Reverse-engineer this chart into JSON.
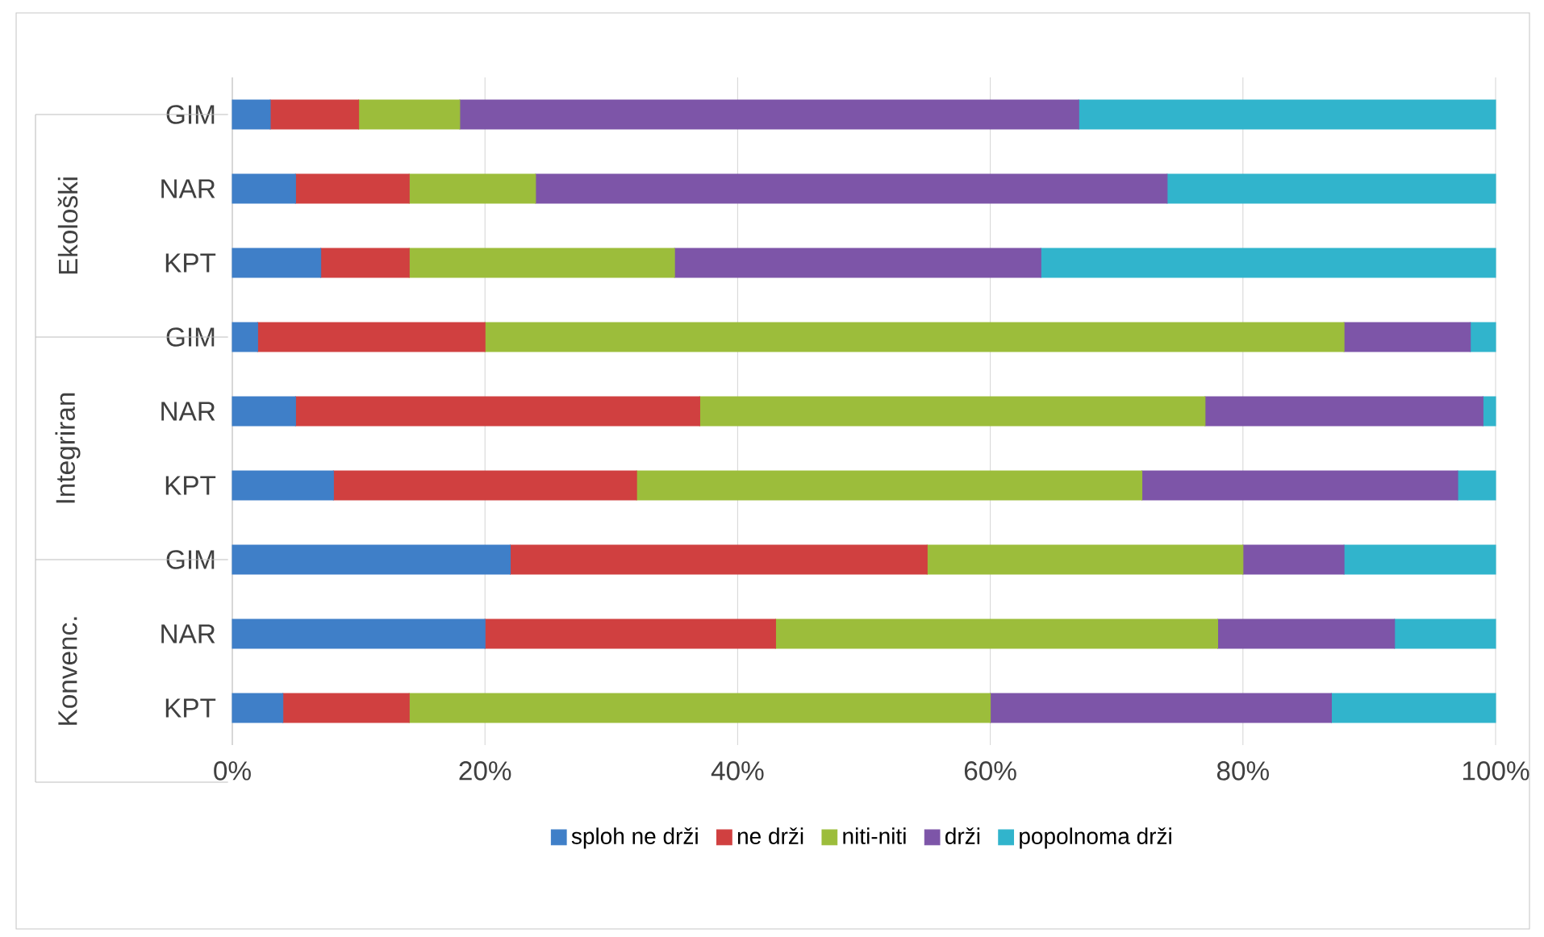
{
  "chart_data": {
    "type": "bar",
    "orientation": "horizontal",
    "stacked": true,
    "categories": [
      "GIM",
      "NAR",
      "KPT",
      "GIM",
      "NAR",
      "KPT",
      "GIM",
      "NAR",
      "KPT"
    ],
    "annotations": [
      "Ekološki",
      "Integriran",
      "Konvenc."
    ],
    "series": [
      {
        "name": "sploh ne drži",
        "color": "#3f7fc8",
        "values": [
          3,
          5,
          7,
          2,
          5,
          8,
          22,
          20,
          4
        ]
      },
      {
        "name": "ne drži",
        "color": "#d04040",
        "values": [
          7,
          9,
          7,
          18,
          32,
          24,
          33,
          23,
          10
        ]
      },
      {
        "name": "niti-niti",
        "color": "#9cbd3b",
        "values": [
          8,
          10,
          21,
          68,
          40,
          40,
          25,
          35,
          46
        ]
      },
      {
        "name": "drži",
        "color": "#7d55a8",
        "values": [
          49,
          50,
          29,
          10,
          22,
          25,
          8,
          14,
          27
        ]
      },
      {
        "name": "popolnoma drži",
        "color": "#31b4cc",
        "values": [
          33,
          26,
          36,
          2,
          1,
          3,
          12,
          8,
          13
        ]
      }
    ],
    "xlim": [
      0,
      100
    ],
    "xticks": [
      {
        "value": 0,
        "label": "0%"
      },
      {
        "value": 20,
        "label": "20%"
      },
      {
        "value": 40,
        "label": "40%"
      },
      {
        "value": 60,
        "label": "60%"
      },
      {
        "value": 80,
        "label": "80%"
      },
      {
        "value": 100,
        "label": "100%"
      }
    ],
    "grid": "x",
    "legend": "bottom"
  }
}
